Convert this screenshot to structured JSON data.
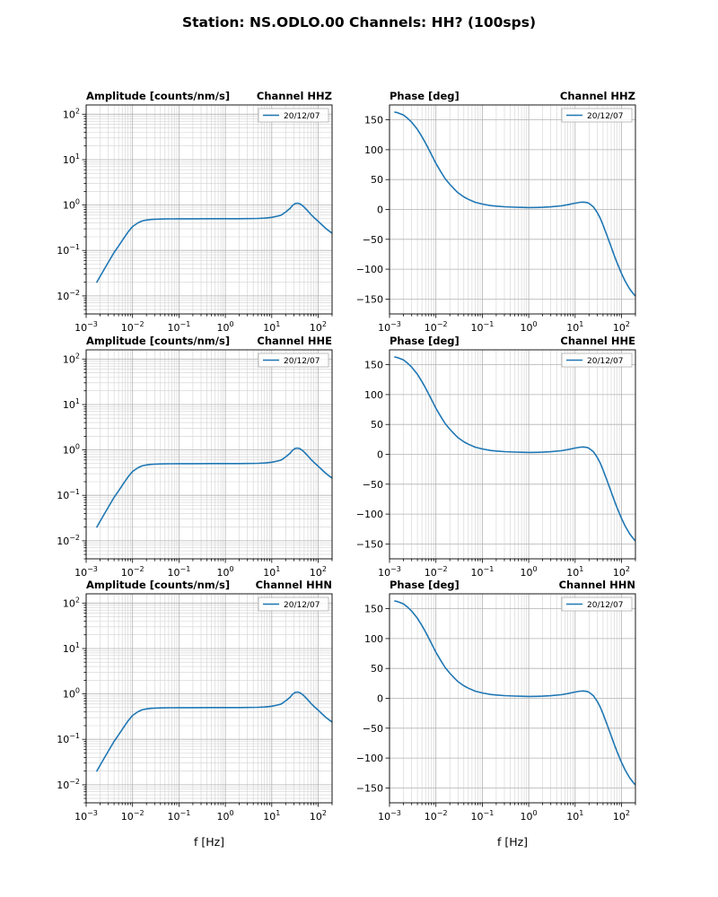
{
  "chart_data": {
    "type": "line",
    "figure_title": "Station: NS.ODLO.00 Channels: HH? (100sps)",
    "xscale": "log",
    "xlim": [
      0.001,
      200
    ],
    "xtick_exponents": [
      -3,
      -2,
      -1,
      0,
      1,
      2
    ],
    "xlabel": "f [Hz]",
    "legend_label": "20/12/07",
    "colors": {
      "line": "#1f77b4",
      "grid_major": "#b2b2b2",
      "grid_minor": "#d2d2d2",
      "spine": "#000000",
      "legend_border": "#b0b0b0"
    },
    "series": {
      "amplitude": {
        "x": [
          0.0017,
          0.002,
          0.0025,
          0.003,
          0.004,
          0.005,
          0.006,
          0.008,
          0.01,
          0.013,
          0.016,
          0.02,
          0.025,
          0.03,
          0.04,
          0.05,
          0.07,
          0.1,
          0.2,
          0.5,
          1,
          2,
          3,
          5,
          7,
          10,
          13,
          16,
          20,
          25,
          28,
          32,
          36,
          40,
          45,
          50,
          60,
          70,
          80,
          100,
          120,
          150,
          180,
          200
        ],
        "y": [
          0.02,
          0.027,
          0.04,
          0.055,
          0.09,
          0.125,
          0.165,
          0.255,
          0.335,
          0.405,
          0.445,
          0.468,
          0.48,
          0.487,
          0.492,
          0.495,
          0.497,
          0.498,
          0.499,
          0.5,
          0.5,
          0.501,
          0.503,
          0.508,
          0.515,
          0.535,
          0.565,
          0.6,
          0.7,
          0.85,
          0.98,
          1.08,
          1.1,
          1.07,
          0.99,
          0.9,
          0.74,
          0.62,
          0.54,
          0.44,
          0.37,
          0.3,
          0.26,
          0.24
        ]
      },
      "phase": {
        "x": [
          0.0013,
          0.0015,
          0.002,
          0.0025,
          0.003,
          0.004,
          0.005,
          0.006,
          0.008,
          0.01,
          0.013,
          0.016,
          0.02,
          0.025,
          0.03,
          0.04,
          0.05,
          0.07,
          0.1,
          0.15,
          0.2,
          0.3,
          0.5,
          0.7,
          1,
          1.5,
          2,
          3,
          5,
          7,
          10,
          13,
          15,
          18,
          20,
          25,
          30,
          35,
          40,
          50,
          60,
          70,
          80,
          100,
          120,
          150,
          180,
          200
        ],
        "y": [
          163,
          162,
          158,
          152,
          146,
          134,
          122,
          111,
          92,
          77,
          62,
          51,
          42,
          34,
          28,
          21,
          17,
          12,
          9,
          6.5,
          5.5,
          4.5,
          3.8,
          3.4,
          3.2,
          3.3,
          3.6,
          4.3,
          6,
          8,
          10.5,
          12,
          12.3,
          11.5,
          10,
          4,
          -5,
          -15,
          -26,
          -46,
          -63,
          -77,
          -89,
          -107,
          -120,
          -133,
          -141,
          -145
        ]
      }
    },
    "charts": [
      {
        "kind": "amplitude",
        "channel": "HHZ",
        "title_left": "Amplitude [counts/nm/s]",
        "title_right": "Channel HHZ",
        "yscale": "log",
        "ylim": [
          0.004,
          160
        ],
        "ytick_exponents": [
          -2,
          -1,
          0,
          1,
          2
        ],
        "show_xlabel": false
      },
      {
        "kind": "phase",
        "channel": "HHZ",
        "title_left": "Phase [deg]",
        "title_right": "Channel HHZ",
        "yscale": "linear",
        "ylim": [
          -175,
          175
        ],
        "yticks": [
          -150,
          -100,
          -50,
          0,
          50,
          100,
          150
        ],
        "show_xlabel": false
      },
      {
        "kind": "amplitude",
        "channel": "HHE",
        "title_left": "Amplitude [counts/nm/s]",
        "title_right": "Channel HHE",
        "yscale": "log",
        "ylim": [
          0.004,
          160
        ],
        "ytick_exponents": [
          -2,
          -1,
          0,
          1,
          2
        ],
        "show_xlabel": false
      },
      {
        "kind": "phase",
        "channel": "HHE",
        "title_left": "Phase [deg]",
        "title_right": "Channel HHE",
        "yscale": "linear",
        "ylim": [
          -175,
          175
        ],
        "yticks": [
          -150,
          -100,
          -50,
          0,
          50,
          100,
          150
        ],
        "show_xlabel": false
      },
      {
        "kind": "amplitude",
        "channel": "HHN",
        "title_left": "Amplitude [counts/nm/s]",
        "title_right": "Channel HHN",
        "yscale": "log",
        "ylim": [
          0.004,
          160
        ],
        "ytick_exponents": [
          -2,
          -1,
          0,
          1,
          2
        ],
        "show_xlabel": true
      },
      {
        "kind": "phase",
        "channel": "HHN",
        "title_left": "Phase [deg]",
        "title_right": "Channel HHN",
        "yscale": "linear",
        "ylim": [
          -175,
          175
        ],
        "yticks": [
          -150,
          -100,
          -50,
          0,
          50,
          100,
          150
        ],
        "show_xlabel": true
      }
    ]
  }
}
